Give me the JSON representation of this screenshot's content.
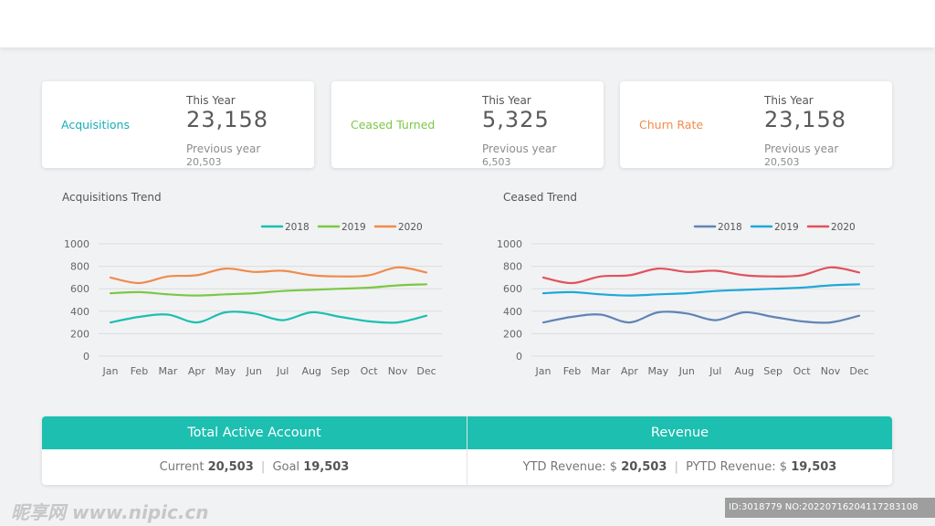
{
  "colors": {
    "teal": "#1cbfb0",
    "green": "#7bc846",
    "orange": "#f08b4b",
    "steel": "#5f84b5",
    "cyan": "#1fa8d8",
    "red": "#e0525c"
  },
  "kpis": [
    {
      "label": "Acquisitions",
      "label_color": "#16aeb8",
      "this_year_label": "This Year",
      "this_year_value": "23,158",
      "prev_year_label": "Previous year",
      "prev_year_value": "20,503"
    },
    {
      "label": "Ceased Turned",
      "label_color": "#7bc846",
      "this_year_label": "This Year",
      "this_year_value": "5,325",
      "prev_year_label": "Previous year",
      "prev_year_value": "6,503"
    },
    {
      "label": "Churn Rate",
      "label_color": "#f08b4b",
      "this_year_label": "This Year",
      "this_year_value": "23,158",
      "prev_year_label": "Previous year",
      "prev_year_value": "20,503"
    }
  ],
  "chart_data": [
    {
      "type": "line",
      "title": "Acquisitions Trend",
      "categories": [
        "Jan",
        "Feb",
        "Mar",
        "Apr",
        "May",
        "Jun",
        "Jul",
        "Aug",
        "Sep",
        "Oct",
        "Nov",
        "Dec"
      ],
      "ylim": [
        0,
        1000
      ],
      "yticks": [
        "0",
        "200",
        "400",
        "600",
        "800",
        "1000"
      ],
      "grid": true,
      "legend": "top-right",
      "series": [
        {
          "name": "2018",
          "color": "#1cbfb0",
          "values": [
            300,
            350,
            370,
            300,
            390,
            380,
            320,
            390,
            350,
            310,
            300,
            360
          ]
        },
        {
          "name": "2019",
          "color": "#7bc846",
          "values": [
            560,
            570,
            550,
            540,
            550,
            560,
            580,
            590,
            600,
            610,
            630,
            640
          ]
        },
        {
          "name": "2020",
          "color": "#f08b4b",
          "values": [
            700,
            650,
            710,
            720,
            780,
            750,
            760,
            720,
            710,
            720,
            790,
            745
          ]
        }
      ]
    },
    {
      "type": "line",
      "title": "Ceased Trend",
      "categories": [
        "Jan",
        "Feb",
        "Mar",
        "Apr",
        "May",
        "Jun",
        "Jul",
        "Aug",
        "Sep",
        "Oct",
        "Nov",
        "Dec"
      ],
      "ylim": [
        0,
        1000
      ],
      "yticks": [
        "0",
        "200",
        "400",
        "600",
        "800",
        "1000"
      ],
      "grid": true,
      "legend": "top-right",
      "series": [
        {
          "name": "2018",
          "color": "#5f84b5",
          "values": [
            300,
            350,
            370,
            300,
            390,
            380,
            320,
            390,
            350,
            310,
            300,
            360
          ]
        },
        {
          "name": "2019",
          "color": "#1fa8d8",
          "values": [
            560,
            570,
            550,
            540,
            550,
            560,
            580,
            590,
            600,
            610,
            630,
            640
          ]
        },
        {
          "name": "2020",
          "color": "#e0525c",
          "values": [
            700,
            650,
            710,
            720,
            780,
            750,
            760,
            720,
            710,
            720,
            790,
            745
          ]
        }
      ]
    }
  ],
  "summary": {
    "left": {
      "title": "Total Active Account",
      "current_label": "Current",
      "current_value": "20,503",
      "sep": "|",
      "goal_label": "Goal",
      "goal_value": "19,503"
    },
    "right": {
      "title": "Revenue",
      "ytd_label": "YTD Revenue: $",
      "ytd_value": "20,503",
      "sep": "|",
      "pytd_label": "PYTD Revenue: $",
      "pytd_value": "19,503"
    }
  },
  "watermark": {
    "left": "昵享网 www.nipic.cn",
    "right": "ID:3018779 NO:20220716204117283108"
  }
}
